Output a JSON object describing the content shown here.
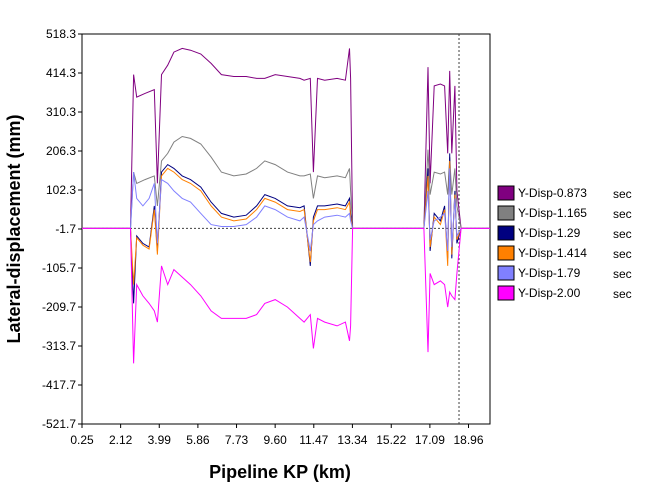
{
  "chart_data": {
    "type": "line",
    "xlabel": "Pipeline KP (km)",
    "ylabel": "Lateral-displacement (mm)",
    "xlim": [
      0.25,
      20.0
    ],
    "ylim": [
      -521.7,
      518.3
    ],
    "x_ticks": [
      "0.25",
      "2.12",
      "3.99",
      "5.86",
      "7.73",
      "9.60",
      "11.47",
      "13.34",
      "15.22",
      "17.09",
      "18.96"
    ],
    "x_tick_values": [
      0.25,
      2.12,
      3.99,
      5.86,
      7.73,
      9.6,
      11.47,
      13.34,
      15.22,
      17.09,
      18.96
    ],
    "y_ticks": [
      "518.3",
      "414.3",
      "310.3",
      "206.3",
      "102.3",
      "-1.7",
      "-105.7",
      "-209.7",
      "-313.7",
      "-417.7",
      "-521.7"
    ],
    "y_tick_values": [
      518.3,
      414.3,
      310.3,
      206.3,
      102.3,
      -1.7,
      -105.7,
      -209.7,
      -313.7,
      -417.7,
      -521.7
    ],
    "reference_lines": {
      "y": 0,
      "x": 18.5
    },
    "grid": false,
    "legend_position": "right",
    "series": [
      {
        "name": "Y-Disp-0.873",
        "unit": "sec",
        "color": "#800080",
        "x": [
          0.25,
          2.6,
          2.75,
          2.9,
          3.3,
          3.75,
          3.9,
          4.1,
          4.4,
          4.7,
          5.1,
          5.5,
          6.0,
          6.5,
          7.0,
          7.6,
          8.2,
          8.7,
          9.1,
          9.6,
          10.2,
          10.8,
          11.0,
          11.3,
          11.45,
          11.65,
          12.0,
          12.6,
          13.0,
          13.2,
          13.25,
          13.35,
          13.6,
          16.8,
          17.0,
          17.1,
          17.3,
          17.6,
          17.8,
          17.95,
          18.05,
          18.15,
          18.3,
          18.4,
          18.6,
          20.0
        ],
        "y": [
          0,
          0,
          410,
          350,
          360,
          370,
          120,
          410,
          435,
          470,
          480,
          475,
          465,
          440,
          410,
          405,
          405,
          400,
          400,
          410,
          405,
          400,
          395,
          400,
          150,
          400,
          395,
          400,
          395,
          480,
          400,
          0,
          0,
          0,
          430,
          120,
          380,
          385,
          380,
          200,
          420,
          200,
          380,
          100,
          0,
          0
        ]
      },
      {
        "name": "Y-Disp-1.165",
        "unit": "sec",
        "color": "#808080",
        "x": [
          0.25,
          2.6,
          2.75,
          2.9,
          3.3,
          3.75,
          3.9,
          4.1,
          4.4,
          4.7,
          5.1,
          5.5,
          6.0,
          6.5,
          7.0,
          7.6,
          8.2,
          8.7,
          9.1,
          9.6,
          10.2,
          10.8,
          11.0,
          11.3,
          11.45,
          11.65,
          12.0,
          12.6,
          13.0,
          13.2,
          13.25,
          13.35,
          13.6,
          16.8,
          17.0,
          17.1,
          17.3,
          17.6,
          17.8,
          17.95,
          18.05,
          18.15,
          18.3,
          18.4,
          18.6,
          20.0
        ],
        "y": [
          0,
          0,
          150,
          120,
          130,
          140,
          60,
          180,
          200,
          230,
          245,
          240,
          225,
          190,
          150,
          140,
          145,
          160,
          180,
          170,
          150,
          140,
          140,
          145,
          80,
          140,
          135,
          140,
          135,
          160,
          100,
          0,
          0,
          0,
          210,
          90,
          150,
          145,
          150,
          90,
          190,
          90,
          160,
          60,
          0,
          0
        ]
      },
      {
        "name": "Y-Disp-1.29",
        "unit": "sec",
        "color": "#000080",
        "x": [
          0.25,
          2.6,
          2.75,
          2.9,
          3.2,
          3.5,
          3.75,
          3.9,
          4.1,
          4.4,
          4.7,
          5.1,
          5.5,
          6.0,
          6.5,
          7.0,
          7.6,
          8.2,
          8.7,
          9.1,
          9.6,
          10.2,
          10.8,
          11.0,
          11.3,
          11.45,
          11.65,
          12.0,
          12.6,
          13.0,
          13.2,
          13.25,
          13.35,
          13.6,
          16.8,
          17.0,
          17.1,
          17.3,
          17.6,
          17.8,
          17.95,
          18.05,
          18.15,
          18.3,
          18.4,
          18.6,
          20.0
        ],
        "y": [
          0,
          0,
          -200,
          -20,
          -40,
          -50,
          60,
          -60,
          150,
          170,
          160,
          140,
          130,
          110,
          70,
          40,
          30,
          35,
          60,
          90,
          80,
          60,
          55,
          60,
          -100,
          30,
          60,
          60,
          65,
          60,
          80,
          40,
          0,
          0,
          0,
          160,
          -60,
          40,
          20,
          60,
          -80,
          200,
          -80,
          100,
          -40,
          0,
          0
        ]
      },
      {
        "name": "Y-Disp-1.414",
        "unit": "sec",
        "color": "#ff8000",
        "x": [
          0.25,
          2.6,
          2.75,
          2.9,
          3.2,
          3.5,
          3.75,
          3.9,
          4.1,
          4.4,
          4.7,
          5.1,
          5.5,
          6.0,
          6.5,
          7.0,
          7.6,
          8.2,
          8.7,
          9.1,
          9.6,
          10.2,
          10.8,
          11.0,
          11.3,
          11.45,
          11.65,
          12.0,
          12.6,
          13.0,
          13.2,
          13.25,
          13.35,
          13.6,
          16.8,
          17.0,
          17.1,
          17.3,
          17.6,
          17.8,
          17.95,
          18.05,
          18.15,
          18.3,
          18.4,
          18.6,
          20.0
        ],
        "y": [
          0,
          0,
          -150,
          -25,
          -45,
          -55,
          50,
          -70,
          140,
          160,
          150,
          130,
          120,
          100,
          60,
          30,
          20,
          25,
          50,
          80,
          70,
          50,
          45,
          50,
          -90,
          20,
          50,
          50,
          55,
          50,
          70,
          30,
          0,
          0,
          0,
          140,
          -50,
          30,
          10,
          50,
          -100,
          180,
          -70,
          90,
          -30,
          0,
          0
        ]
      },
      {
        "name": "Y-Disp-1.79",
        "unit": "sec",
        "color": "#8080ff",
        "x": [
          0.25,
          2.6,
          2.75,
          2.9,
          3.2,
          3.5,
          3.75,
          3.9,
          4.1,
          4.4,
          4.7,
          5.1,
          5.5,
          6.0,
          6.5,
          7.0,
          7.6,
          8.2,
          8.7,
          9.1,
          9.6,
          10.2,
          10.8,
          11.0,
          11.3,
          11.45,
          11.65,
          12.0,
          12.6,
          13.0,
          13.2,
          13.25,
          13.35,
          13.6,
          16.8,
          17.0,
          17.1,
          17.3,
          17.6,
          17.8,
          17.95,
          18.05,
          18.15,
          18.3,
          18.4,
          18.6,
          20.0
        ],
        "y": [
          0,
          0,
          150,
          80,
          60,
          80,
          120,
          -40,
          130,
          120,
          100,
          80,
          70,
          40,
          10,
          5,
          5,
          10,
          30,
          60,
          50,
          30,
          20,
          30,
          -60,
          10,
          20,
          30,
          35,
          30,
          40,
          20,
          0,
          0,
          0,
          100,
          -30,
          20,
          30,
          40,
          -60,
          160,
          -50,
          80,
          -20,
          0,
          0
        ]
      },
      {
        "name": "Y-Disp-2.00",
        "unit": "sec",
        "color": "#ff00ff",
        "x": [
          0.25,
          2.6,
          2.75,
          2.9,
          3.2,
          3.5,
          3.75,
          3.9,
          4.1,
          4.4,
          4.7,
          5.1,
          5.5,
          6.0,
          6.5,
          7.0,
          7.6,
          8.2,
          8.7,
          9.1,
          9.6,
          10.2,
          10.8,
          11.0,
          11.3,
          11.45,
          11.65,
          12.0,
          12.6,
          13.0,
          13.2,
          13.25,
          13.35,
          13.6,
          16.8,
          17.0,
          17.1,
          17.3,
          17.6,
          17.8,
          17.95,
          18.05,
          18.15,
          18.3,
          18.4,
          18.6,
          20.0
        ],
        "y": [
          0,
          0,
          -360,
          -150,
          -180,
          -200,
          -220,
          -250,
          -100,
          -150,
          -110,
          -130,
          -150,
          -180,
          -220,
          -240,
          -240,
          -240,
          -230,
          -200,
          -190,
          -210,
          -240,
          -250,
          -230,
          -320,
          -240,
          -250,
          -260,
          -250,
          -300,
          -260,
          0,
          0,
          0,
          -330,
          -120,
          -150,
          -140,
          -150,
          -210,
          -170,
          -180,
          -190,
          -120,
          0,
          0
        ]
      }
    ]
  }
}
